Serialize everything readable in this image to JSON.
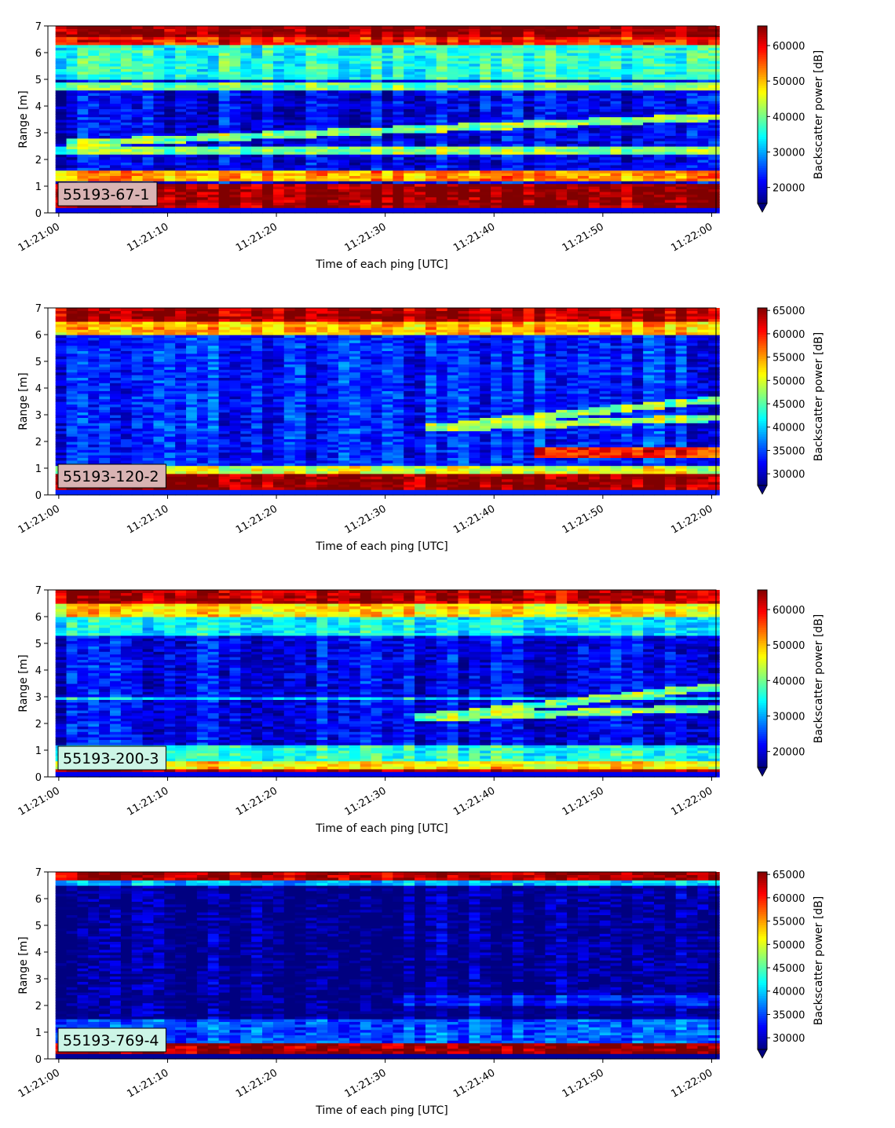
{
  "chart_data": [
    {
      "type": "heatmap",
      "label": "55193-67-1",
      "label_box_color": "#d9b3b3",
      "xlabel": "Time of each ping [UTC]",
      "ylabel": "Range [m]",
      "colorbar_label": "Backscatter power [dB]",
      "colormap": "jet",
      "x_range": [
        "11:21:00",
        "11:22:00"
      ],
      "xlim": [
        "11:20:59",
        "11:22:00"
      ],
      "x_ticks": [
        "11:21:00",
        "11:21:10",
        "11:21:20",
        "11:21:30",
        "11:21:40",
        "11:21:50",
        "11:22:00"
      ],
      "ylim": [
        0,
        7
      ],
      "y_ticks": [
        "0",
        "1",
        "2",
        "3",
        "4",
        "5",
        "6",
        "7"
      ],
      "clim": [
        15500,
        65535
      ],
      "colorbar_ticks": [
        "20000",
        "30000",
        "40000",
        "50000",
        "60000"
      ],
      "colorbar_extend": "min",
      "features": [
        {
          "range_m": [
            0.2,
            1.1
          ],
          "level": 65000
        },
        {
          "range_m": [
            1.2,
            1.6
          ],
          "level": 52000
        },
        {
          "range_m": [
            2.2,
            2.5
          ],
          "level": 40000
        },
        {
          "range_m": [
            4.6,
            4.9
          ],
          "level": 40000
        },
        {
          "range_m": [
            5.0,
            6.3
          ],
          "level": 36000
        },
        {
          "range_m": [
            6.3,
            6.6
          ],
          "level": 58000
        },
        {
          "range_m": [
            6.6,
            7.0
          ],
          "level": 65000
        }
      ],
      "background_level": 21000,
      "diverging_layers": [
        {
          "start_time": "11:21:00",
          "start_range_m": 2.6,
          "end_time": "11:22:00",
          "end_range_m": 3.6
        },
        {
          "start_time": "11:21:00",
          "start_range_m": 2.4,
          "end_time": "11:22:00",
          "end_range_m": 2.3
        }
      ]
    },
    {
      "type": "heatmap",
      "label": "55193-120-2",
      "label_box_color": "#d9b3b3",
      "xlabel": "Time of each ping [UTC]",
      "ylabel": "Range [m]",
      "colorbar_label": "Backscatter power [dB]",
      "colormap": "jet",
      "x_range": [
        "11:21:00",
        "11:22:00"
      ],
      "xlim": [
        "11:20:59",
        "11:22:00"
      ],
      "x_ticks": [
        "11:21:00",
        "11:21:10",
        "11:21:20",
        "11:21:30",
        "11:21:40",
        "11:21:50",
        "11:22:00"
      ],
      "ylim": [
        0,
        7
      ],
      "y_ticks": [
        "0",
        "1",
        "2",
        "3",
        "4",
        "5",
        "6",
        "7"
      ],
      "clim": [
        27500,
        65535
      ],
      "colorbar_ticks": [
        "30000",
        "35000",
        "40000",
        "45000",
        "50000",
        "55000",
        "60000",
        "65000"
      ],
      "colorbar_extend": "min",
      "features": [
        {
          "range_m": [
            0.2,
            0.85
          ],
          "level": 65000
        },
        {
          "range_m": [
            0.85,
            1.1
          ],
          "level": 50000
        },
        {
          "range_m": [
            6.0,
            6.5
          ],
          "level": 54000
        },
        {
          "range_m": [
            6.5,
            7.0
          ],
          "level": 64000
        }
      ],
      "background_level": 33500,
      "late_features": [
        {
          "start_time": "11:21:43",
          "range_m": [
            1.4,
            1.8
          ],
          "level": 60000
        }
      ],
      "diverging_layers": [
        {
          "start_time": "11:21:33",
          "start_range_m": 2.5,
          "end_time": "11:22:00",
          "end_range_m": 3.6
        },
        {
          "start_time": "11:21:33",
          "start_range_m": 2.5,
          "end_time": "11:22:00",
          "end_range_m": 2.9
        }
      ]
    },
    {
      "type": "heatmap",
      "label": "55193-200-3",
      "label_box_color": "#ccf5e6",
      "xlabel": "Time of each ping [UTC]",
      "ylabel": "Range [m]",
      "colorbar_label": "Backscatter power [dB]",
      "colormap": "jet",
      "x_range": [
        "11:21:00",
        "11:22:00"
      ],
      "xlim": [
        "11:20:59",
        "11:22:00"
      ],
      "x_ticks": [
        "11:21:00",
        "11:21:10",
        "11:21:20",
        "11:21:30",
        "11:21:40",
        "11:21:50",
        "11:22:00"
      ],
      "ylim": [
        0,
        7
      ],
      "y_ticks": [
        "0",
        "1",
        "2",
        "3",
        "4",
        "5",
        "6",
        "7"
      ],
      "clim": [
        15500,
        65535
      ],
      "colorbar_ticks": [
        "20000",
        "30000",
        "40000",
        "50000",
        "60000"
      ],
      "colorbar_extend": "min",
      "features": [
        {
          "range_m": [
            0.15,
            0.35
          ],
          "level": 64000
        },
        {
          "range_m": [
            0.35,
            0.6
          ],
          "level": 48000
        },
        {
          "range_m": [
            0.6,
            1.2
          ],
          "level": 36000
        },
        {
          "range_m": [
            2.9,
            3.05
          ],
          "level": 33000
        },
        {
          "range_m": [
            5.3,
            6.0
          ],
          "level": 34000
        },
        {
          "range_m": [
            6.0,
            6.5
          ],
          "level": 48000
        },
        {
          "range_m": [
            6.5,
            7.0
          ],
          "level": 63000
        }
      ],
      "background_level": 21000,
      "diverging_layers": [
        {
          "start_time": "11:21:32",
          "start_range_m": 2.2,
          "end_time": "11:22:00",
          "end_range_m": 3.4
        },
        {
          "start_time": "11:21:32",
          "start_range_m": 2.2,
          "end_time": "11:22:00",
          "end_range_m": 2.6
        }
      ]
    },
    {
      "type": "heatmap",
      "label": "55193-769-4",
      "label_box_color": "#ccf5e6",
      "xlabel": "Time of each ping [UTC]",
      "ylabel": "Range [m]",
      "colorbar_label": "Backscatter power [dB]",
      "colormap": "jet",
      "x_range": [
        "11:21:00",
        "11:22:00"
      ],
      "xlim": [
        "11:20:59",
        "11:22:00"
      ],
      "x_ticks": [
        "11:21:00",
        "11:21:10",
        "11:21:20",
        "11:21:30",
        "11:21:40",
        "11:21:50",
        "11:22:00"
      ],
      "ylim": [
        0,
        7
      ],
      "y_ticks": [
        "0",
        "1",
        "2",
        "3",
        "4",
        "5",
        "6",
        "7"
      ],
      "clim": [
        27500,
        65535
      ],
      "colorbar_ticks": [
        "30000",
        "35000",
        "40000",
        "45000",
        "50000",
        "55000",
        "60000",
        "65000"
      ],
      "colorbar_extend": "min",
      "features": [
        {
          "range_m": [
            0.2,
            0.65
          ],
          "level": 65000
        },
        {
          "range_m": [
            0.65,
            1.5
          ],
          "level": 36000
        },
        {
          "range_m": [
            6.5,
            6.75
          ],
          "level": 40000
        },
        {
          "range_m": [
            6.75,
            7.0
          ],
          "level": 64000
        }
      ],
      "background_level": 28500,
      "late_features": [
        {
          "start_time": "11:21:30",
          "range_m": [
            2.0,
            2.4
          ],
          "level": 33000
        }
      ]
    }
  ]
}
